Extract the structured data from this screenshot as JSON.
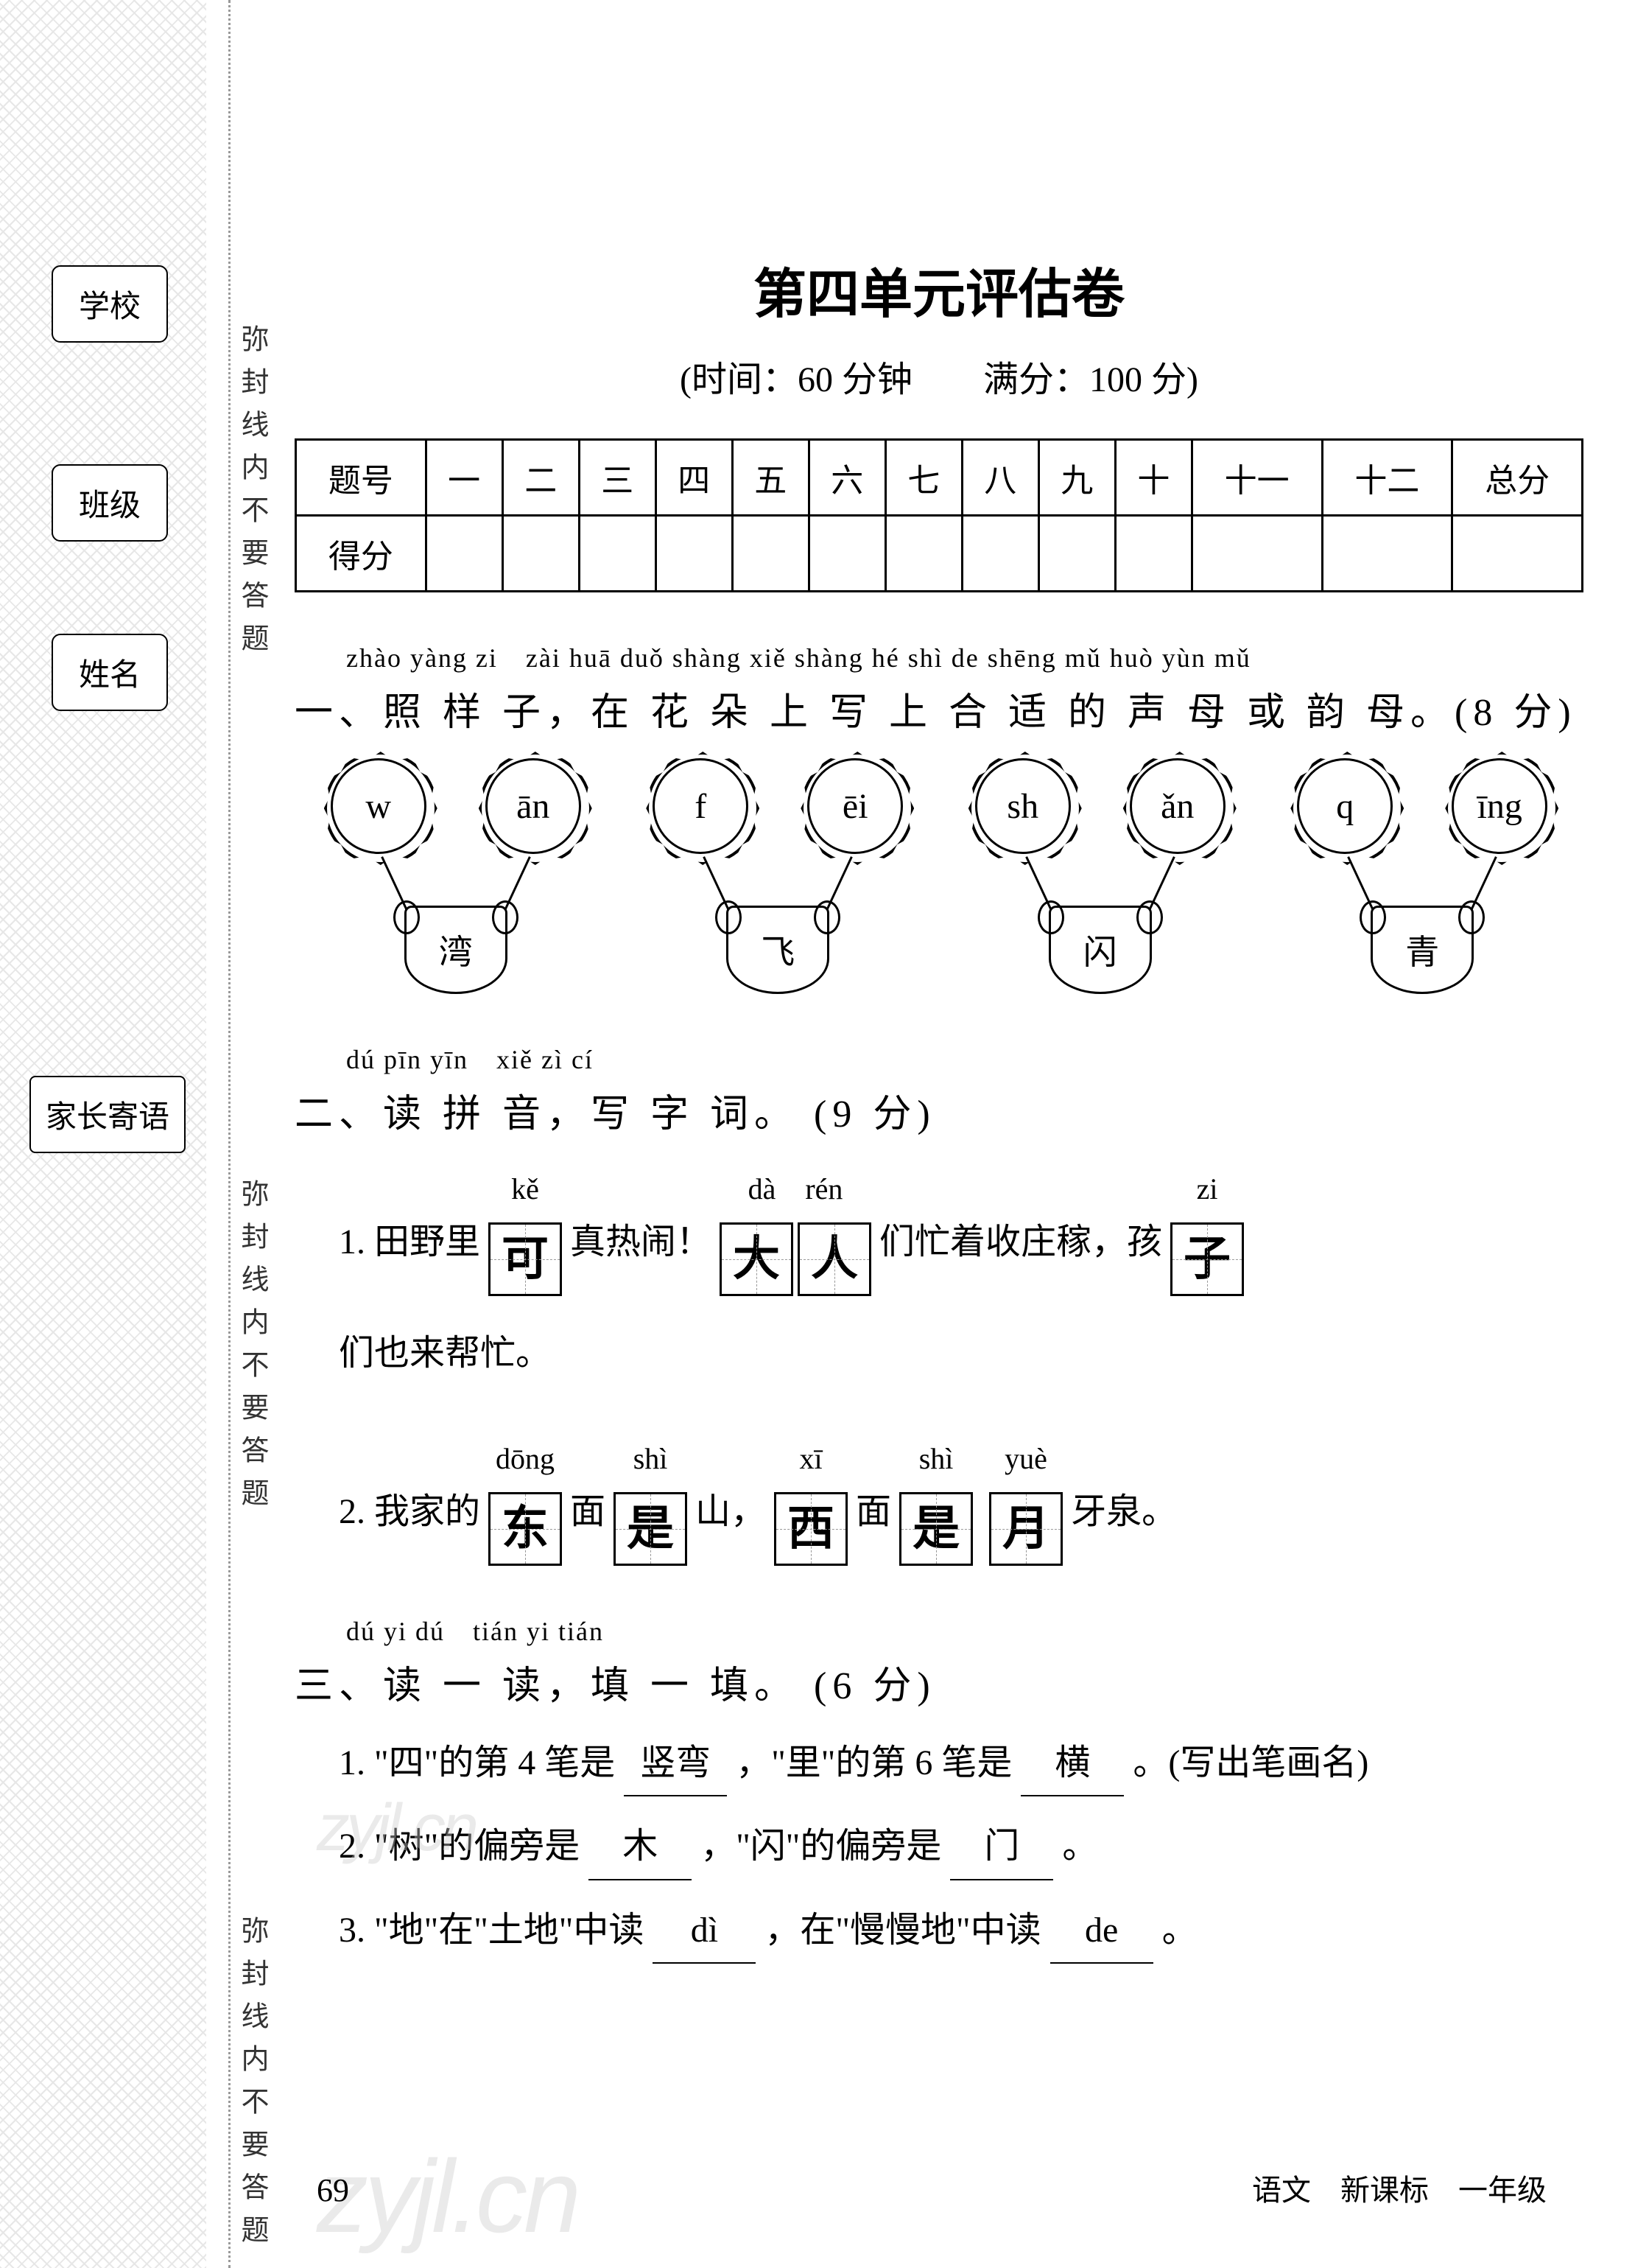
{
  "sidebar": {
    "school": "学校",
    "class": "班级",
    "name": "姓名",
    "parent": "家长寄语",
    "sealine": "弥封线内不要答题"
  },
  "header": {
    "title": "第四单元评估卷",
    "subtitle": "(时间：60 分钟　　满分：100 分)"
  },
  "scoreTable": {
    "rowLabels": [
      "题号",
      "得分"
    ],
    "cols": [
      "一",
      "二",
      "三",
      "四",
      "五",
      "六",
      "七",
      "八",
      "九",
      "十",
      "十一",
      "十二",
      "总分"
    ]
  },
  "q1": {
    "pinyin": "zhào yàng zi　zài huā duǒ shàng xiě shàng hé shì de shēng mǔ huò yùn mǔ",
    "heading": "一、照 样 子，在 花 朵 上 写 上 合 适 的 声 母 或 韵 母。(8 分)",
    "items": [
      {
        "left": "w",
        "right": "ān",
        "char": "湾"
      },
      {
        "left": "f",
        "right": "ēi",
        "char": "飞"
      },
      {
        "left": "sh",
        "right": "ǎn",
        "char": "闪"
      },
      {
        "left": "q",
        "right": "īng",
        "char": "青"
      }
    ]
  },
  "q2": {
    "pinyin": "dú pīn yīn　xiě zì cí",
    "heading": "二、读 拼 音，写 字 词。 (9 分)",
    "line1": {
      "prefix": "1. 田野里",
      "box1": {
        "pinyin": "kě",
        "chars": [
          "可"
        ]
      },
      "mid1": "真热闹！",
      "box2": {
        "pinyin": "dà　rén",
        "chars": [
          "大",
          "人"
        ]
      },
      "mid2": "们忙着收庄稼，孩",
      "box3": {
        "pinyin": "zi",
        "chars": [
          "子"
        ]
      },
      "suffix_line2": "们也来帮忙。"
    },
    "line2": {
      "prefix": "2. 我家的",
      "box1": {
        "pinyin": "dōng",
        "chars": [
          "东"
        ]
      },
      "mid1": "面",
      "box2": {
        "pinyin": "shì",
        "chars": [
          "是"
        ]
      },
      "mid2": "山，",
      "box3": {
        "pinyin": "xī",
        "chars": [
          "西"
        ]
      },
      "mid3": "面",
      "box4": {
        "pinyin": "shì",
        "chars": [
          "是"
        ]
      },
      "mid4": "",
      "box5": {
        "pinyin": "yuè",
        "chars": [
          "月"
        ]
      },
      "suffix": "牙泉。"
    }
  },
  "q3": {
    "pinyin": "dú yi dú　tián yi tián",
    "heading": "三、读 一 读，填 一 填。 (6 分)",
    "lines": [
      {
        "pre": "1. \"四\"的第 4 笔是",
        "a1": "竖弯",
        "mid": "，\"里\"的第 6 笔是",
        "a2": "横",
        "post": "。(写出笔画名)"
      },
      {
        "pre": "2. \"树\"的偏旁是",
        "a1": "木",
        "mid": "，\"闪\"的偏旁是",
        "a2": "门",
        "post": "。"
      },
      {
        "pre": "3. \"地\"在\"土地\"中读",
        "a1": "dì",
        "mid": "，在\"慢慢地\"中读",
        "a2": "de",
        "post": "。"
      }
    ]
  },
  "watermark": "zyjl.cn",
  "pageNum": "69",
  "footerRight": "语文　新课标　一年级"
}
